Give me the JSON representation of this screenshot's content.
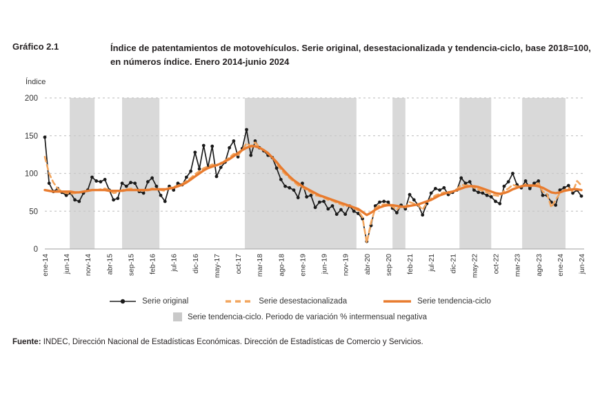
{
  "header": {
    "figure_label": "Gráfico 2.1",
    "title": "Índice de patentamientos de motovehículos. Serie original, desestacionalizada y tendencia-ciclo, base 2018=100, en números índice. Enero 2014-junio 2024"
  },
  "chart_data": {
    "type": "line",
    "title": "Índice de patentamientos de motovehículos",
    "xlabel": "",
    "ylabel": "Índice",
    "ylim": [
      0,
      200
    ],
    "yticks": [
      0,
      50,
      100,
      150,
      200
    ],
    "grid": "horizontal-dashed",
    "legend_position": "bottom",
    "frequency": "monthly",
    "x_start": "ene-14",
    "x_end": "jun-24",
    "n_points": 126,
    "x_tick_every": 5,
    "x_tick_labels": [
      "ene-14",
      "jun-14",
      "nov-14",
      "abr-15",
      "sep-15",
      "feb-16",
      "jul-16",
      "dic-16",
      "may-17",
      "oct-17",
      "mar-18",
      "ago-18",
      "ene-19",
      "jun-19",
      "nov-19",
      "abr-20",
      "sep-20",
      "feb-21",
      "jul-21",
      "dic-21",
      "may-22",
      "oct-22",
      "mar-23",
      "ago-23",
      "ene-24",
      "jun-24"
    ],
    "colors": {
      "original": "#1a1a1a",
      "desestacionalizada": "#f2a55e",
      "tendencia_ciclo": "#e87b2e",
      "band": "#d9d9d9",
      "grid": "#c8c8c8",
      "axis": "#b0b0b0"
    },
    "series": [
      {
        "name": "Serie original",
        "style": "solid-with-dots",
        "values": [
          148,
          87,
          76,
          80,
          75,
          71,
          74,
          65,
          63,
          74,
          78,
          95,
          90,
          89,
          92,
          78,
          65,
          67,
          87,
          83,
          88,
          87,
          76,
          74,
          89,
          94,
          83,
          71,
          63,
          83,
          78,
          87,
          85,
          95,
          103,
          128,
          106,
          137,
          108,
          136,
          96,
          108,
          115,
          134,
          143,
          122,
          133,
          158,
          124,
          143,
          134,
          130,
          124,
          121,
          107,
          92,
          83,
          81,
          78,
          68,
          87,
          69,
          71,
          55,
          62,
          63,
          53,
          57,
          46,
          52,
          46,
          57,
          50,
          47,
          40,
          10,
          31,
          57,
          62,
          63,
          62,
          54,
          48,
          58,
          53,
          72,
          65,
          58,
          45,
          60,
          74,
          80,
          78,
          81,
          72,
          75,
          78,
          94,
          87,
          89,
          78,
          75,
          74,
          71,
          69,
          63,
          60,
          83,
          89,
          100,
          85,
          81,
          90,
          80,
          87,
          90,
          71,
          71,
          62,
          58,
          78,
          81,
          84,
          74,
          78,
          70
        ]
      },
      {
        "name": "Serie desestacionalizada",
        "style": "dashed",
        "values": [
          122,
          100,
          88,
          80,
          76,
          74,
          73,
          74,
          75,
          76,
          77,
          78,
          78,
          79,
          80,
          78,
          74,
          75,
          78,
          79,
          80,
          79,
          77,
          77,
          79,
          80,
          79,
          78,
          77,
          81,
          82,
          84,
          86,
          90,
          94,
          99,
          103,
          107,
          109,
          112,
          110,
          114,
          117,
          121,
          126,
          124,
          131,
          140,
          136,
          141,
          135,
          131,
          126,
          122,
          113,
          105,
          99,
          94,
          89,
          84,
          82,
          78,
          75,
          71,
          70,
          68,
          65,
          64,
          61,
          59,
          56,
          58,
          54,
          51,
          42,
          8,
          35,
          54,
          58,
          59,
          59,
          56,
          52,
          57,
          55,
          62,
          60,
          58,
          52,
          61,
          67,
          71,
          73,
          75,
          73,
          76,
          79,
          85,
          84,
          85,
          81,
          79,
          77,
          75,
          72,
          71,
          70,
          77,
          80,
          85,
          83,
          82,
          86,
          83,
          84,
          87,
          76,
          73,
          55,
          65,
          74,
          78,
          81,
          76,
          90,
          84
        ]
      },
      {
        "name": "Serie tendencia-ciclo",
        "style": "solid-thick",
        "values": [
          78,
          77,
          76,
          76,
          76,
          76,
          76,
          75,
          75,
          76,
          77,
          78,
          78,
          78,
          78,
          77,
          77,
          77,
          77,
          78,
          78,
          78,
          78,
          78,
          78,
          79,
          79,
          79,
          79,
          80,
          81,
          83,
          85,
          88,
          92,
          96,
          100,
          104,
          107,
          109,
          111,
          113,
          116,
          119,
          123,
          127,
          131,
          134,
          136,
          136,
          134,
          131,
          127,
          121,
          115,
          108,
          102,
          96,
          91,
          87,
          83,
          80,
          77,
          74,
          71,
          69,
          67,
          65,
          63,
          61,
          59,
          57,
          55,
          53,
          49,
          45,
          48,
          52,
          55,
          57,
          58,
          58,
          57,
          56,
          56,
          57,
          58,
          59,
          61,
          63,
          65,
          68,
          71,
          73,
          75,
          76,
          78,
          80,
          82,
          83,
          83,
          82,
          80,
          78,
          76,
          74,
          73,
          74,
          76,
          79,
          81,
          83,
          84,
          84,
          84,
          83,
          81,
          78,
          75,
          74,
          75,
          77,
          78,
          79,
          79,
          78
        ]
      }
    ],
    "negative_variation_bands": [
      {
        "label": "jul-14 a dic-14",
        "from_index": 5.8,
        "to_index": 11.6
      },
      {
        "label": "jul-15 a mar-16",
        "from_index": 18.0,
        "to_index": 26.7
      },
      {
        "label": "nov-17 a feb-20",
        "from_index": 46.6,
        "to_index": 72.6
      },
      {
        "label": "oct-20 a ene-21",
        "from_index": 81.0,
        "to_index": 84.0
      },
      {
        "label": "ene-22 a sep-22",
        "from_index": 96.6,
        "to_index": 104.0
      },
      {
        "label": "abr-23 a feb-24",
        "from_index": 111.2,
        "to_index": 121.3
      }
    ]
  },
  "y_axis_title": "Índice",
  "legend": {
    "original_label": "Serie original",
    "desestacionalizada_label": "Serie desestacionalizada",
    "tendencia_label": "Serie tendencia-ciclo",
    "band_label": "Serie tendencia-ciclo. Periodo de variación % intermensual negativa"
  },
  "footer": {
    "source_label": "Fuente:",
    "source_text": " INDEC, Dirección Nacional de Estadísticas Económicas. Dirección de Estadísticas de Comercio y Servicios."
  }
}
